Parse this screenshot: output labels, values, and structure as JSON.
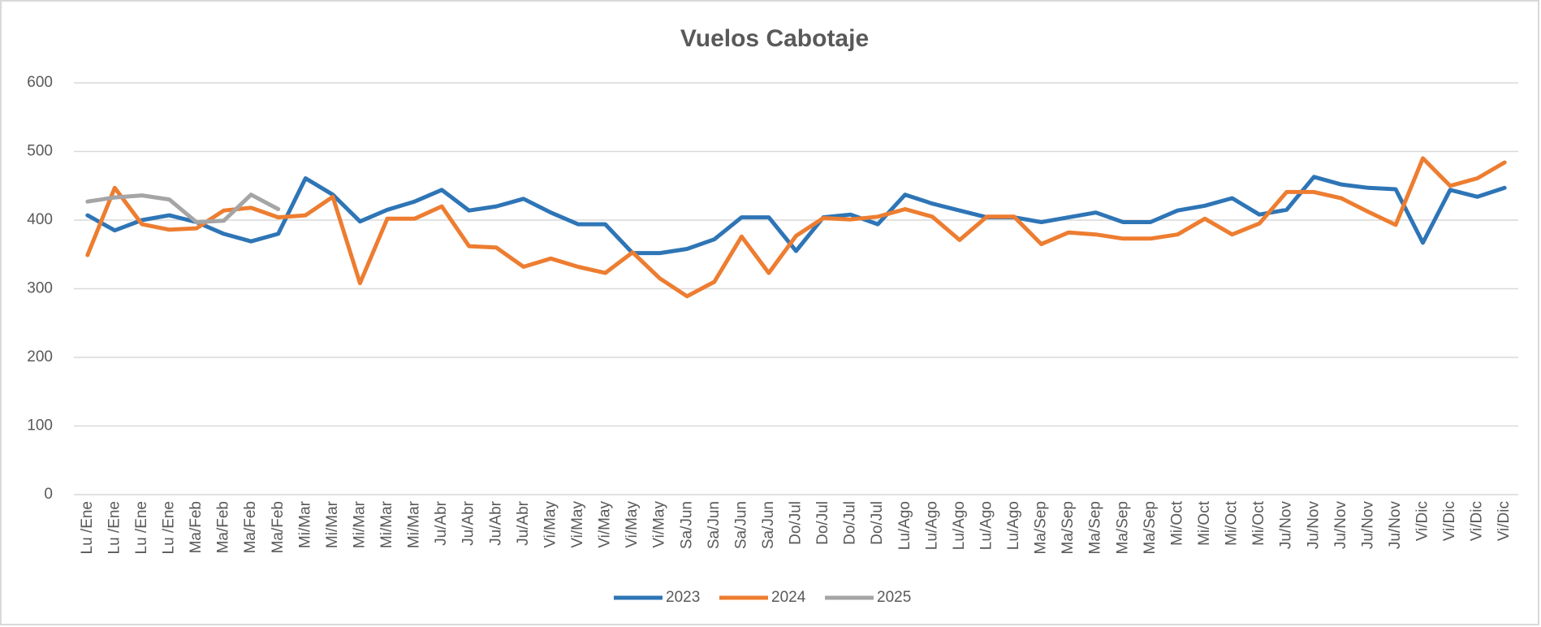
{
  "chart_data": {
    "type": "line",
    "title": "Vuelos Cabotaje",
    "categories": [
      "Lu /Ene",
      "Lu /Ene",
      "Lu /Ene",
      "Lu /Ene",
      "Ma/Feb",
      "Ma/Feb",
      "Ma/Feb",
      "Ma/Feb",
      "Mi/Mar",
      "Mi/Mar",
      "Mi/Mar",
      "Mi/Mar",
      "Mi/Mar",
      "Ju/Abr",
      "Ju/Abr",
      "Ju/Abr",
      "Ju/Abr",
      "Vi/May",
      "Vi/May",
      "Vi/May",
      "Vi/May",
      "Vi/May",
      "Sa/Jun",
      "Sa/Jun",
      "Sa/Jun",
      "Sa/Jun",
      "Do/Jul",
      "Do/Jul",
      "Do/Jul",
      "Do/Jul",
      "Lu/Ago",
      "Lu/Ago",
      "Lu/Ago",
      "Lu/Ago",
      "Lu/Ago",
      "Ma/Sep",
      "Ma/Sep",
      "Ma/Sep",
      "Ma/Sep",
      "Ma/Sep",
      "Mi/Oct",
      "Mi/Oct",
      "Mi/Oct",
      "Mi/Oct",
      "Ju/Nov",
      "Ju/Nov",
      "Ju/Nov",
      "Ju/Nov",
      "Ju/Nov",
      "Vi/Dic",
      "Vi/Dic",
      "Vi/Dic",
      "Vi/Dic"
    ],
    "series": [
      {
        "name": "2023",
        "color": "#2e75b6",
        "values": [
          407,
          385,
          400,
          407,
          397,
          380,
          369,
          380,
          461,
          437,
          398,
          415,
          427,
          444,
          414,
          420,
          431,
          411,
          394,
          394,
          352,
          352,
          358,
          372,
          404,
          404,
          355,
          404,
          408,
          394,
          437,
          424,
          414,
          404,
          404,
          397,
          404,
          411,
          397,
          397,
          414,
          421,
          432,
          408,
          415,
          463,
          452,
          447,
          445,
          367,
          444,
          434,
          447
        ]
      },
      {
        "name": "2024",
        "color": "#ed7d31",
        "values": [
          349,
          447,
          394,
          386,
          388,
          414,
          418,
          404,
          407,
          434,
          308,
          402,
          402,
          420,
          362,
          360,
          332,
          344,
          332,
          323,
          353,
          315,
          289,
          310,
          376,
          323,
          377,
          403,
          401,
          405,
          416,
          405,
          371,
          405,
          405,
          365,
          382,
          379,
          373,
          373,
          379,
          402,
          379,
          395,
          441,
          441,
          432,
          412,
          393,
          490,
          450,
          461,
          484
        ]
      },
      {
        "name": "2025",
        "color": "#a5a5a5",
        "values": [
          427,
          433,
          436,
          430,
          397,
          399,
          437,
          416,
          null,
          null,
          null,
          null,
          null,
          null,
          null,
          null,
          null,
          null,
          null,
          null,
          null,
          null,
          null,
          null,
          null,
          null,
          null,
          null,
          null,
          null,
          null,
          null,
          null,
          null,
          null,
          null,
          null,
          null,
          null,
          null,
          null,
          null,
          null,
          null,
          null,
          null,
          null,
          null,
          null,
          null,
          null,
          null,
          null
        ]
      }
    ],
    "ylim": [
      0,
      600
    ],
    "yticks": [
      0,
      100,
      200,
      300,
      400,
      500,
      600
    ],
    "grid": true,
    "legend": "bottom"
  }
}
